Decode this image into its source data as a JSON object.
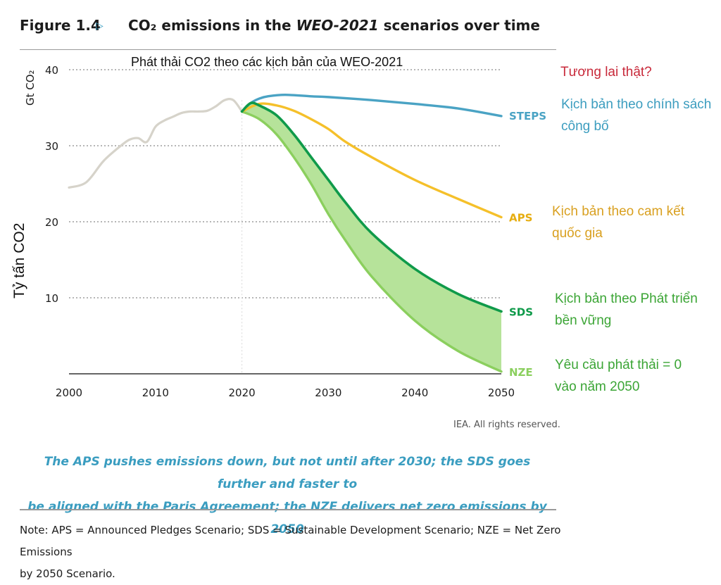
{
  "header": {
    "figure_number": "Figure 1.4",
    "title_prefix": "CO₂ emissions in the ",
    "title_italic": "WEO-2021",
    "title_suffix": " scenarios over time"
  },
  "vi_title": "Phát thải CO2 theo các kịch bản của WEO-2021",
  "y_unit": "Gt CO₂",
  "y_label_vi": "Tỷ tấn CO2",
  "credit": "IEA. All rights reserved.",
  "caption_lines": [
    "The APS pushes emissions down, but not until after 2030; the SDS goes further and faster to",
    "be aligned with the Paris Agreement; the NZE delivers net zero emissions by 2050"
  ],
  "note_lines": [
    "Note:  APS = Announced Pledges Scenario; SDS = Sustainable Development Scenario; NZE = Net Zero Emissions",
    "by 2050 Scenario."
  ],
  "annotations": {
    "future": "Tương lai thật?",
    "steps": [
      "Kịch bản theo chính sách",
      "công bố"
    ],
    "aps": [
      "Kịch bản theo cam kết",
      "quốc gia"
    ],
    "sds": [
      "Kịch bản theo Phát triển",
      "bền vững"
    ],
    "nze": [
      "Yêu cầu phát thải = 0",
      "vào năm 2050"
    ]
  },
  "colors": {
    "history": "#d6d3ca",
    "steps": "#4aa3c4",
    "aps": "#f5c02a",
    "sds": "#0f9a4a",
    "nze": "#8bcf5e",
    "band": "#b6e39a",
    "future_text": "#c8293a",
    "steps_text": "#3c9dbf",
    "aps_text": "#d9a020",
    "green_text": "#3ba535",
    "caption": "#3a9dc0"
  },
  "chart_data": {
    "type": "line",
    "xlim": [
      2000,
      2050
    ],
    "ylim": [
      0,
      40
    ],
    "x_ticks": [
      2000,
      2010,
      2020,
      2030,
      2040,
      2050
    ],
    "y_ticks": [
      10,
      20,
      30,
      40
    ],
    "grid": "horizontal dotted",
    "shaded_band": {
      "between": [
        "SDS",
        "NZE"
      ],
      "from": 2020,
      "to": 2050
    },
    "series": [
      {
        "name": "",
        "key": "history",
        "x": [
          2000,
          2002,
          2004,
          2006,
          2007,
          2008,
          2009,
          2010,
          2011,
          2012,
          2013,
          2014,
          2015,
          2016,
          2017,
          2018,
          2019,
          2020
        ],
        "y": [
          24.5,
          25.2,
          28.0,
          30.0,
          30.8,
          31.0,
          30.5,
          32.5,
          33.3,
          33.8,
          34.3,
          34.5,
          34.5,
          34.6,
          35.2,
          36.0,
          36.0,
          34.5
        ]
      },
      {
        "name": "STEPS",
        "key": "steps",
        "x": [
          2020,
          2021,
          2022,
          2023,
          2025,
          2028,
          2030,
          2035,
          2040,
          2045,
          2050
        ],
        "y": [
          34.5,
          35.6,
          36.2,
          36.5,
          36.7,
          36.5,
          36.4,
          36.0,
          35.5,
          34.9,
          33.9
        ]
      },
      {
        "name": "APS",
        "key": "aps",
        "x": [
          2020,
          2022,
          2024,
          2026,
          2028,
          2030,
          2032,
          2035,
          2040,
          2045,
          2050
        ],
        "y": [
          34.5,
          35.5,
          35.3,
          34.6,
          33.5,
          32.2,
          30.5,
          28.5,
          25.5,
          23.0,
          20.6
        ]
      },
      {
        "name": "SDS",
        "key": "sds",
        "x": [
          2020,
          2021,
          2022,
          2024,
          2026,
          2028,
          2030,
          2032,
          2035,
          2040,
          2045,
          2050
        ],
        "y": [
          34.5,
          35.6,
          35.3,
          34.0,
          31.5,
          28.5,
          25.5,
          22.5,
          18.5,
          13.8,
          10.5,
          8.2
        ]
      },
      {
        "name": "NZE",
        "key": "nze",
        "x": [
          2020,
          2022,
          2024,
          2026,
          2028,
          2030,
          2032,
          2035,
          2040,
          2045,
          2050
        ],
        "y": [
          34.5,
          33.5,
          31.5,
          28.5,
          25.0,
          21.0,
          17.5,
          12.8,
          7.0,
          3.0,
          0.3
        ]
      }
    ]
  }
}
